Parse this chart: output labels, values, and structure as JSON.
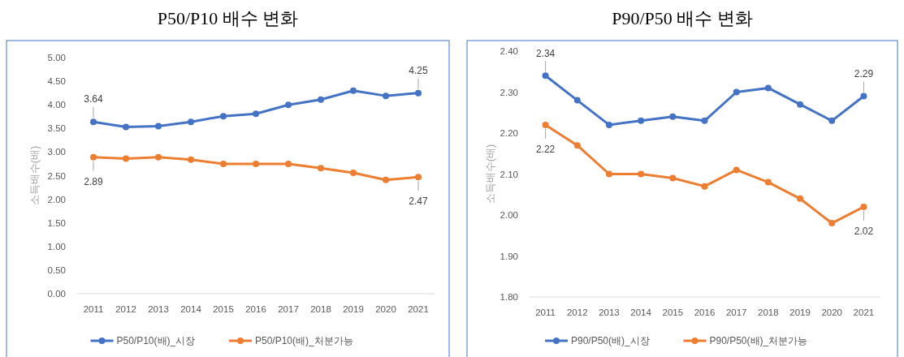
{
  "chart_data": [
    {
      "type": "line",
      "title": "P50/P10 배수 변화",
      "ylabel": "소득배수(배)",
      "categories": [
        "2011",
        "2012",
        "2013",
        "2014",
        "2015",
        "2016",
        "2017",
        "2018",
        "2019",
        "2020",
        "2021"
      ],
      "ylim": [
        0,
        5
      ],
      "yticks": [
        {
          "value": 0,
          "label": "0.00"
        },
        {
          "value": 0.5,
          "label": "0.50"
        },
        {
          "value": 1,
          "label": "1.00"
        },
        {
          "value": 1.5,
          "label": "1.50"
        },
        {
          "value": 2,
          "label": "2.00"
        },
        {
          "value": 2.5,
          "label": "2.50"
        },
        {
          "value": 3,
          "label": "3.00"
        },
        {
          "value": 3.5,
          "label": "3.50"
        },
        {
          "value": 4,
          "label": "4.00"
        },
        {
          "value": 4.5,
          "label": "4.50"
        },
        {
          "value": 5,
          "label": "5.00"
        }
      ],
      "grid": false,
      "legend": "bottom",
      "marker": "circle",
      "line_style": "solid",
      "series": [
        {
          "name": "P50/P10(배)_시장",
          "color": "#4472c4",
          "values": [
            3.64,
            3.53,
            3.55,
            3.64,
            3.76,
            3.81,
            4.0,
            4.11,
            4.3,
            4.19,
            4.25
          ]
        },
        {
          "name": "P50/P10(배)_처분가능",
          "color": "#ed7d31",
          "values": [
            2.89,
            2.86,
            2.89,
            2.84,
            2.75,
            2.75,
            2.75,
            2.66,
            2.56,
            2.41,
            2.47
          ]
        }
      ],
      "annotations": [
        {
          "text": "3.64",
          "x": "2011",
          "y": 3.64
        },
        {
          "text": "4.25",
          "x": "2021",
          "y": 4.25
        },
        {
          "text": "2.89",
          "x": "2011",
          "y": 2.89
        },
        {
          "text": "2.47",
          "x": "2021",
          "y": 2.47
        }
      ]
    },
    {
      "type": "line",
      "title": "P90/P50 배수 변화",
      "ylabel": "소득배수(배)",
      "categories": [
        "2011",
        "2012",
        "2013",
        "2014",
        "2015",
        "2016",
        "2017",
        "2018",
        "2019",
        "2020",
        "2021"
      ],
      "ylim": [
        1.8,
        2.4
      ],
      "yticks": [
        {
          "value": 1.8,
          "label": "1.80"
        },
        {
          "value": 1.9,
          "label": "1.90"
        },
        {
          "value": 2,
          "label": "2.00"
        },
        {
          "value": 2.1,
          "label": "2.10"
        },
        {
          "value": 2.2,
          "label": "2.20"
        },
        {
          "value": 2.3,
          "label": "2.30"
        },
        {
          "value": 2.4,
          "label": "2.40"
        }
      ],
      "grid": false,
      "legend": "bottom",
      "marker": "circle",
      "line_style": "solid",
      "series": [
        {
          "name": "P90/P50(배)_시장",
          "color": "#4472c4",
          "values": [
            2.34,
            2.28,
            2.22,
            2.23,
            2.24,
            2.23,
            2.3,
            2.31,
            2.27,
            2.23,
            2.29
          ]
        },
        {
          "name": "P90/P50(배)_처분가능",
          "color": "#ed7d31",
          "values": [
            2.22,
            2.17,
            2.1,
            2.1,
            2.09,
            2.07,
            2.11,
            2.08,
            2.04,
            1.98,
            2.02
          ]
        }
      ],
      "annotations": [
        {
          "text": "2.34",
          "x": "2011",
          "y": 2.34
        },
        {
          "text": "2.29",
          "x": "2021",
          "y": 2.29
        },
        {
          "text": "2.22",
          "x": "2011",
          "y": 2.22
        },
        {
          "text": "2.02",
          "x": "2021",
          "y": 2.02
        }
      ]
    }
  ]
}
